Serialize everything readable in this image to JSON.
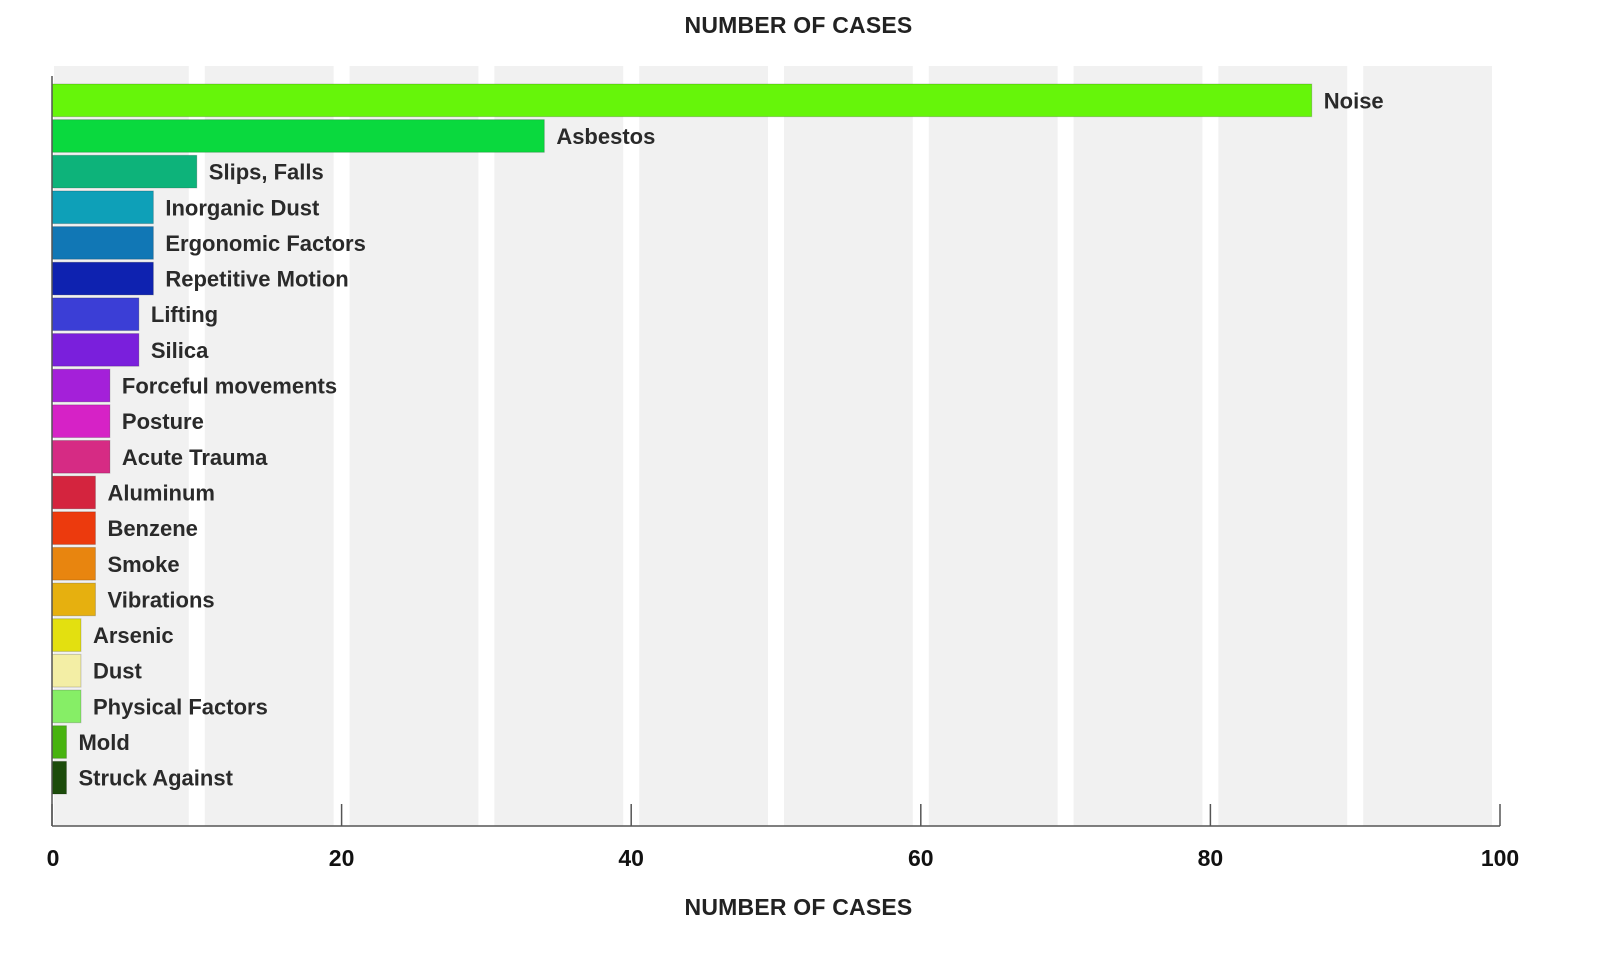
{
  "chart_data": {
    "type": "bar",
    "orientation": "horizontal",
    "title": "NUMBER OF CASES",
    "xlabel": "NUMBER OF CASES",
    "ylabel": "",
    "xlim": [
      0,
      100
    ],
    "x_ticks": [
      "0",
      "20",
      "40",
      "60",
      "80",
      "100"
    ],
    "x_tick_values": [
      0,
      20,
      40,
      60,
      80,
      100
    ],
    "grid": "alternating vertical bands every 10 units",
    "grid_color": "#f1f1f1",
    "legend": "none; bars labeled at end",
    "categories": [
      "Noise",
      "Asbestos",
      "Slips, Falls",
      "Inorganic Dust",
      "Ergonomic Factors",
      "Repetitive Motion",
      "Lifting",
      "Silica",
      "Forceful movements",
      "Posture",
      "Acute Trauma",
      "Aluminum",
      "Benzene",
      "Smoke",
      "Vibrations",
      "Arsenic",
      "Dust",
      "Physical Factors",
      "Mold",
      "Struck Against"
    ],
    "values": [
      87,
      34,
      10,
      7,
      7,
      7,
      6,
      6,
      4,
      4,
      4,
      3,
      3,
      3,
      3,
      2,
      2,
      2,
      1,
      1
    ],
    "colors": [
      "#66f50a",
      "#0ad93e",
      "#0db37a",
      "#0ea0b8",
      "#1177b5",
      "#0e22b0",
      "#3b3ed6",
      "#7a1fdc",
      "#a420d9",
      "#d622c6",
      "#d62b84",
      "#d4243e",
      "#ec3a0d",
      "#e8850f",
      "#e6b00f",
      "#e3e010",
      "#f3eea5",
      "#86ee66",
      "#47b30f",
      "#1c4c0b"
    ]
  }
}
